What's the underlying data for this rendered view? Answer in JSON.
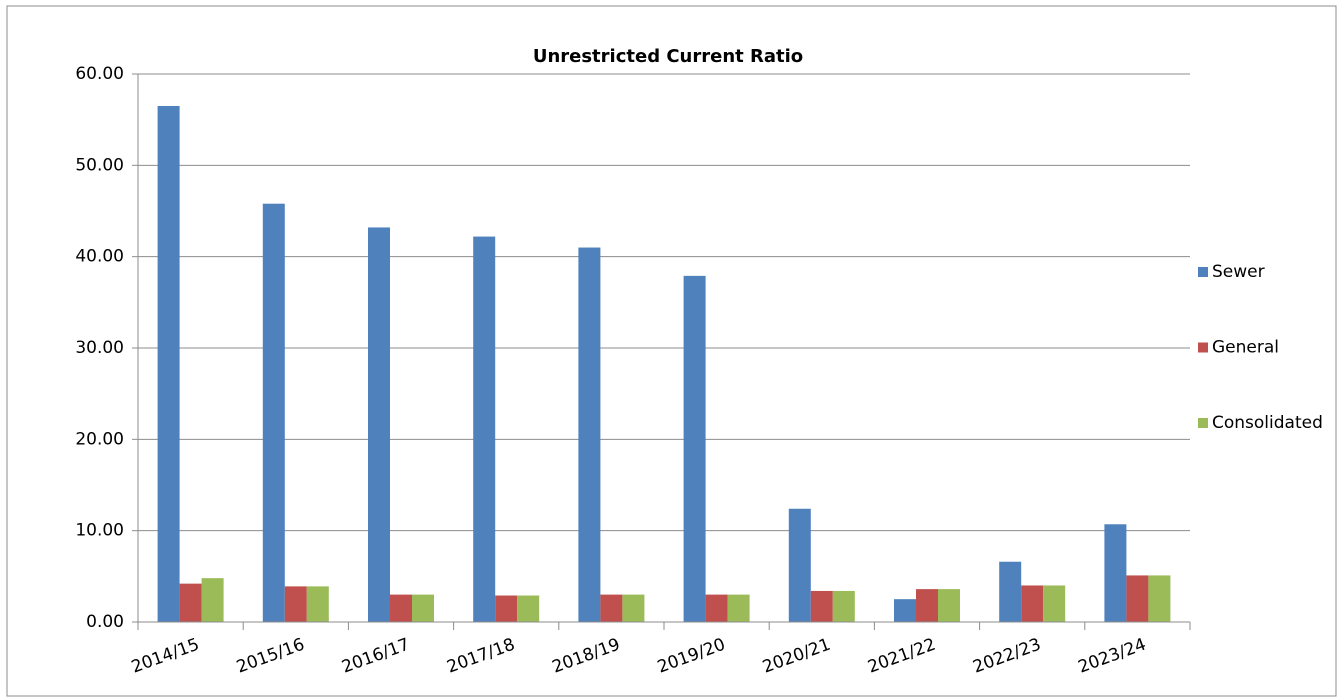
{
  "chart_data": {
    "type": "bar",
    "title": "Unrestricted Current Ratio",
    "categories": [
      "2014/15",
      "2015/16",
      "2016/17",
      "2017/18",
      "2018/19",
      "2019/20",
      "2020/21",
      "2021/22",
      "2022/23",
      "2023/24"
    ],
    "series": [
      {
        "name": "Sewer",
        "color": "#4f81bd",
        "values": [
          56.5,
          45.8,
          43.2,
          42.2,
          41.0,
          37.9,
          12.4,
          2.5,
          6.6,
          10.7
        ]
      },
      {
        "name": "General",
        "color": "#c0504d",
        "values": [
          4.2,
          3.9,
          3.0,
          2.9,
          3.0,
          3.0,
          3.4,
          3.6,
          4.0,
          5.1
        ]
      },
      {
        "name": "Consolidated",
        "color": "#9bbb59",
        "values": [
          4.8,
          3.9,
          3.0,
          2.9,
          3.0,
          3.0,
          3.4,
          3.6,
          4.0,
          5.1
        ]
      }
    ],
    "ylim": [
      0,
      60
    ],
    "yticks": [
      {
        "value": 0,
        "label": "0.00"
      },
      {
        "value": 10,
        "label": "10.00"
      },
      {
        "value": 20,
        "label": "20.00"
      },
      {
        "value": 30,
        "label": "30.00"
      },
      {
        "value": 40,
        "label": "40.00"
      },
      {
        "value": 50,
        "label": "50.00"
      },
      {
        "value": 60,
        "label": "60.00"
      }
    ],
    "grid": true,
    "legend": "right"
  }
}
